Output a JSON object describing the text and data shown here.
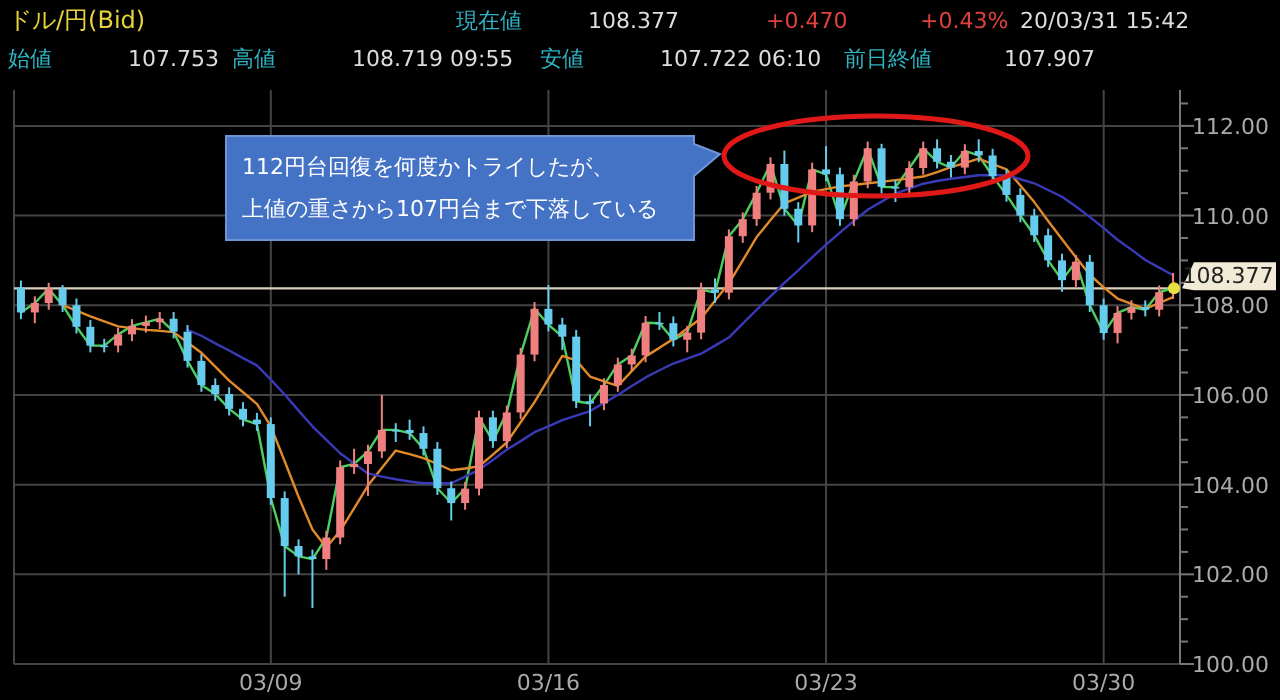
{
  "chart_data": {
    "type": "candlestick",
    "title": "ドル/円(Bid)",
    "annotations": [
      "112円台回復を何度かトライしたが、",
      "上値の重さから107円台まで下落している",
      "現在値",
      "108.377",
      "+0.470",
      "+0.43%",
      "20/03/31 15:42",
      "始値",
      "107.753",
      "高値",
      "108.719 09:55",
      "安値",
      "107.722 06:10",
      "前日終値",
      "107.907"
    ],
    "categories": [
      null,
      null,
      null,
      null,
      null,
      null,
      null,
      null,
      null,
      null,
      null,
      null,
      null,
      null,
      null,
      null,
      null,
      null,
      "03/09",
      null,
      null,
      null,
      null,
      null,
      null,
      null,
      null,
      null,
      null,
      null,
      null,
      null,
      null,
      null,
      null,
      null,
      null,
      null,
      "03/16",
      null,
      null,
      null,
      null,
      null,
      null,
      null,
      null,
      null,
      null,
      null,
      null,
      null,
      null,
      null,
      null,
      null,
      null,
      null,
      "03/23",
      null,
      null,
      null,
      null,
      null,
      null,
      null,
      null,
      null,
      null,
      null,
      null,
      null,
      null,
      null,
      null,
      null,
      null,
      null,
      "03/30",
      null,
      null,
      null,
      null,
      null
    ],
    "ylim": [
      100,
      112.8
    ],
    "yticks": [
      {
        "value": 100,
        "label": "100.00"
      },
      {
        "value": 100.5,
        "label": null
      },
      {
        "value": 101,
        "label": null
      },
      {
        "value": 101.5,
        "label": null
      },
      {
        "value": 102,
        "label": "102.00"
      },
      {
        "value": 102.5,
        "label": null
      },
      {
        "value": 103,
        "label": null
      },
      {
        "value": 103.5,
        "label": null
      },
      {
        "value": 104,
        "label": "104.00"
      },
      {
        "value": 104.5,
        "label": null
      },
      {
        "value": 105,
        "label": null
      },
      {
        "value": 105.5,
        "label": null
      },
      {
        "value": 106,
        "label": "106.00"
      },
      {
        "value": 106.5,
        "label": null
      },
      {
        "value": 107,
        "label": null
      },
      {
        "value": 107.5,
        "label": null
      },
      {
        "value": 108,
        "label": "108.00"
      },
      {
        "value": 108.5,
        "label": null
      },
      {
        "value": 109,
        "label": null
      },
      {
        "value": 109.5,
        "label": null
      },
      {
        "value": 110,
        "label": "110.00"
      },
      {
        "value": 110.5,
        "label": null
      },
      {
        "value": 111,
        "label": null
      },
      {
        "value": 111.5,
        "label": null
      },
      {
        "value": 112,
        "label": "112.00"
      },
      {
        "value": 112.5,
        "label": null
      }
    ],
    "grid": true,
    "ref_lines": [
      {
        "axis": "y",
        "value": 108.377,
        "label": "108.377",
        "color": "#d8d0bc"
      }
    ],
    "series": [
      {
        "ohlc": [
          [
            108.4,
            108.55,
            107.69,
            107.84
          ],
          [
            107.84,
            108.2,
            107.6,
            108.05
          ],
          [
            108.05,
            108.5,
            107.9,
            108.37
          ],
          [
            108.37,
            108.45,
            107.85,
            108.0
          ],
          [
            108.0,
            108.15,
            107.37,
            107.52
          ],
          [
            107.52,
            107.67,
            106.95,
            107.1
          ],
          [
            107.1,
            107.25,
            106.95,
            107.1
          ],
          [
            107.1,
            107.5,
            106.95,
            107.35
          ],
          [
            107.35,
            107.69,
            107.2,
            107.54
          ],
          [
            107.54,
            107.77,
            107.39,
            107.62
          ],
          [
            107.62,
            107.85,
            107.47,
            107.7
          ],
          [
            107.7,
            107.85,
            107.26,
            107.41
          ],
          [
            107.41,
            107.56,
            106.61,
            106.76
          ],
          [
            106.76,
            106.91,
            106.07,
            106.22
          ],
          [
            106.22,
            106.37,
            105.87,
            106.02
          ],
          [
            106.02,
            106.17,
            105.54,
            105.69
          ],
          [
            105.69,
            105.84,
            105.3,
            105.45
          ],
          [
            105.45,
            105.6,
            105.2,
            105.35
          ],
          [
            105.35,
            105.5,
            103.55,
            103.7
          ],
          [
            103.7,
            103.85,
            101.5,
            102.63
          ],
          [
            102.63,
            102.78,
            102.0,
            102.4
          ],
          [
            102.4,
            102.55,
            101.25,
            102.34
          ],
          [
            102.34,
            102.97,
            102.1,
            102.82
          ],
          [
            102.82,
            104.54,
            102.67,
            104.39
          ],
          [
            104.39,
            104.8,
            104.24,
            104.46
          ],
          [
            104.46,
            104.89,
            103.75,
            104.74
          ],
          [
            104.74,
            106.0,
            104.59,
            105.22
          ],
          [
            105.22,
            105.37,
            104.95,
            105.22
          ],
          [
            105.22,
            105.45,
            105.0,
            105.15
          ],
          [
            105.15,
            105.3,
            104.65,
            104.8
          ],
          [
            104.8,
            104.95,
            103.77,
            103.92
          ],
          [
            103.92,
            104.07,
            103.2,
            103.59
          ],
          [
            103.59,
            104.06,
            103.44,
            103.91
          ],
          [
            103.91,
            105.65,
            103.76,
            105.5
          ],
          [
            105.5,
            105.65,
            104.82,
            104.97
          ],
          [
            104.97,
            105.76,
            104.82,
            105.61
          ],
          [
            105.61,
            107.05,
            105.46,
            106.9
          ],
          [
            106.9,
            108.07,
            106.75,
            107.92
          ],
          [
            107.92,
            108.45,
            107.42,
            107.57
          ],
          [
            107.57,
            107.72,
            107.0,
            107.3
          ],
          [
            107.3,
            107.45,
            105.71,
            105.86
          ],
          [
            105.86,
            106.01,
            105.3,
            105.81
          ],
          [
            105.81,
            106.37,
            105.66,
            106.22
          ],
          [
            106.22,
            106.83,
            106.07,
            106.68
          ],
          [
            106.68,
            107.03,
            106.53,
            106.88
          ],
          [
            106.88,
            107.76,
            106.73,
            107.61
          ],
          [
            107.61,
            107.85,
            107.45,
            107.6
          ],
          [
            107.6,
            107.75,
            107.08,
            107.23
          ],
          [
            107.23,
            107.54,
            106.95,
            107.39
          ],
          [
            107.39,
            108.5,
            107.24,
            108.35
          ],
          [
            108.35,
            108.6,
            108.05,
            108.28
          ],
          [
            108.28,
            109.69,
            108.13,
            109.54
          ],
          [
            109.54,
            110.07,
            109.39,
            109.92
          ],
          [
            109.92,
            110.66,
            109.77,
            110.51
          ],
          [
            110.51,
            111.3,
            110.36,
            111.15
          ],
          [
            111.15,
            111.45,
            110.0,
            110.15
          ],
          [
            110.15,
            110.3,
            109.4,
            109.78
          ],
          [
            109.78,
            111.18,
            109.63,
            111.03
          ],
          [
            111.03,
            111.55,
            110.77,
            110.92
          ],
          [
            110.92,
            111.07,
            109.77,
            109.92
          ],
          [
            109.92,
            110.91,
            109.77,
            110.76
          ],
          [
            110.76,
            111.65,
            110.61,
            111.5
          ],
          [
            111.5,
            111.6,
            110.49,
            110.64
          ],
          [
            110.64,
            110.79,
            110.3,
            110.63
          ],
          [
            110.63,
            111.21,
            110.48,
            111.06
          ],
          [
            111.06,
            111.65,
            110.91,
            111.5
          ],
          [
            111.5,
            111.7,
            111.05,
            111.2
          ],
          [
            111.2,
            111.35,
            110.85,
            111.07
          ],
          [
            111.07,
            111.59,
            110.92,
            111.44
          ],
          [
            111.44,
            111.7,
            111.19,
            111.34
          ],
          [
            111.34,
            111.49,
            110.73,
            110.88
          ],
          [
            110.88,
            111.03,
            110.31,
            110.46
          ],
          [
            110.46,
            110.61,
            109.85,
            110.0
          ],
          [
            110.0,
            110.15,
            109.41,
            109.56
          ],
          [
            109.56,
            109.71,
            108.85,
            109.0
          ],
          [
            109.0,
            109.15,
            108.3,
            108.56
          ],
          [
            108.56,
            109.12,
            108.41,
            108.97
          ],
          [
            108.97,
            109.12,
            107.85,
            108.0
          ],
          [
            108.0,
            108.15,
            107.23,
            107.38
          ],
          [
            107.38,
            107.98,
            107.15,
            107.83
          ],
          [
            107.83,
            108.11,
            107.68,
            107.96
          ],
          [
            107.96,
            108.11,
            107.75,
            107.9
          ],
          [
            107.9,
            108.44,
            107.75,
            108.29
          ],
          [
            108.29,
            108.719,
            108.14,
            108.377
          ]
        ],
        "colors": [
          "#66ccee",
          "#f08080",
          "#f08080",
          "#66ccee",
          "#66ccee",
          "#66ccee",
          "#66ccee",
          "#f08080",
          "#f08080",
          "#f08080",
          "#f08080",
          "#66ccee",
          "#66ccee",
          "#66ccee",
          "#66ccee",
          "#66ccee",
          "#66ccee",
          "#66ccee",
          "#66ccee",
          "#66ccee",
          "#66ccee",
          "#66ccee",
          "#f08080",
          "#f08080",
          "#f08080",
          "#f08080",
          "#f08080",
          "#66ccee",
          "#66ccee",
          "#66ccee",
          "#66ccee",
          "#66ccee",
          "#f08080",
          "#f08080",
          "#66ccee",
          "#f08080",
          "#f08080",
          "#f08080",
          "#66ccee",
          "#66ccee",
          "#66ccee",
          "#66ccee",
          "#f08080",
          "#f08080",
          "#f08080",
          "#f08080",
          "#66ccee",
          "#66ccee",
          "#f08080",
          "#f08080",
          "#66ccee",
          "#f08080",
          "#f08080",
          "#f08080",
          "#f08080",
          "#66ccee",
          "#66ccee",
          "#f08080",
          "#66ccee",
          "#66ccee",
          "#f08080",
          "#f08080",
          "#66ccee",
          "#66ccee",
          "#f08080",
          "#f08080",
          "#66ccee",
          "#66ccee",
          "#f08080",
          "#66ccee",
          "#66ccee",
          "#66ccee",
          "#66ccee",
          "#66ccee",
          "#66ccee",
          "#66ccee",
          "#f08080",
          "#66ccee",
          "#66ccee",
          "#f08080",
          "#f08080",
          "#66ccee",
          "#f08080",
          "#f08080"
        ]
      },
      {
        "type": "line",
        "color": "#4ccf5e",
        "values": [
          107.84,
          108.05,
          108.37,
          108.0,
          107.52,
          107.1,
          107.1,
          107.35,
          107.54,
          107.62,
          107.7,
          107.41,
          106.76,
          106.22,
          106.02,
          105.69,
          105.45,
          105.35,
          103.7,
          102.63,
          102.4,
          102.34,
          102.82,
          104.39,
          104.46,
          104.74,
          105.22,
          105.22,
          105.15,
          104.8,
          103.92,
          103.59,
          103.91,
          105.5,
          104.97,
          105.61,
          106.9,
          107.92,
          107.57,
          107.3,
          105.86,
          105.81,
          106.22,
          106.68,
          106.88,
          107.61,
          107.6,
          107.23,
          107.39,
          108.35,
          108.28,
          109.54,
          109.92,
          110.51,
          111.15,
          110.15,
          109.78,
          111.03,
          110.92,
          109.92,
          110.76,
          111.5,
          110.64,
          110.63,
          111.06,
          111.5,
          111.2,
          111.07,
          111.44,
          111.34,
          110.88,
          110.46,
          110.0,
          109.56,
          109.0,
          108.56,
          108.97,
          108.0,
          107.38,
          107.83,
          107.96,
          107.9,
          108.29,
          108.38
        ]
      },
      {
        "type": "line",
        "color": "#e08a2a",
        "values": [
          null,
          null,
          null,
          108.0,
          107.88,
          107.75,
          107.64,
          107.53,
          107.49,
          107.45,
          107.43,
          107.4,
          107.17,
          106.94,
          106.63,
          106.32,
          106.06,
          105.8,
          105.3,
          104.52,
          103.73,
          103.0,
          102.6,
          102.97,
          103.47,
          103.98,
          104.37,
          104.76,
          104.68,
          104.59,
          104.46,
          104.32,
          104.36,
          104.41,
          104.67,
          104.94,
          105.39,
          105.84,
          106.36,
          106.87,
          106.77,
          106.41,
          106.3,
          106.2,
          106.53,
          106.86,
          107.05,
          107.25,
          107.48,
          107.71,
          108.1,
          108.49,
          109.0,
          109.52,
          109.9,
          110.27,
          110.4,
          110.53,
          110.59,
          110.65,
          110.68,
          110.72,
          110.75,
          110.79,
          110.83,
          110.87,
          110.97,
          111.08,
          111.17,
          111.27,
          111.15,
          111.03,
          110.67,
          110.3,
          109.88,
          109.47,
          109.07,
          108.68,
          108.4,
          108.15,
          108.03,
          107.92,
          108.05,
          108.18
        ]
      },
      {
        "type": "line",
        "color": "#3a3ab8",
        "values": [
          null,
          null,
          null,
          null,
          null,
          null,
          null,
          null,
          null,
          null,
          null,
          null,
          107.45,
          107.32,
          107.15,
          106.99,
          106.82,
          106.66,
          106.34,
          106.01,
          105.65,
          105.3,
          105.0,
          104.7,
          104.47,
          104.25,
          104.18,
          104.12,
          104.07,
          104.03,
          104.03,
          104.03,
          104.18,
          104.33,
          104.55,
          104.78,
          104.97,
          105.17,
          105.3,
          105.44,
          105.54,
          105.64,
          105.82,
          106.0,
          106.2,
          106.39,
          106.55,
          106.7,
          106.81,
          106.92,
          107.1,
          107.28,
          107.59,
          107.9,
          108.2,
          108.5,
          108.78,
          109.07,
          109.35,
          109.62,
          109.88,
          110.13,
          110.31,
          110.49,
          110.6,
          110.71,
          110.77,
          110.82,
          110.86,
          110.9,
          110.9,
          110.9,
          110.81,
          110.72,
          110.57,
          110.42,
          110.2,
          109.97,
          109.72,
          109.46,
          109.24,
          109.01,
          108.84,
          108.67
        ]
      }
    ]
  }
}
